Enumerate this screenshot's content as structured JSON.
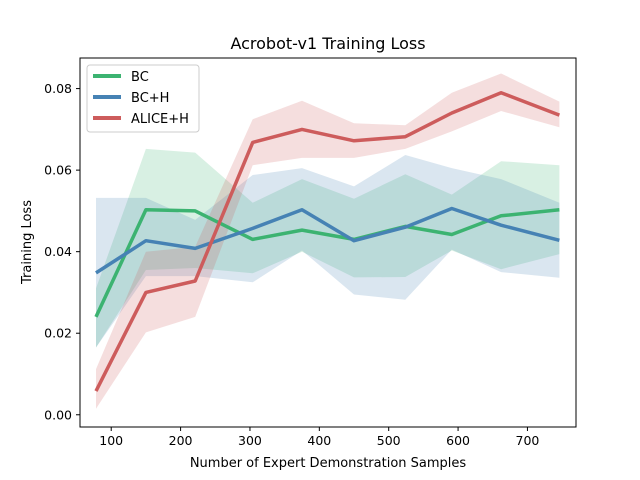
{
  "chart_data": {
    "type": "line",
    "title": "Acrobot-v1 Training Loss",
    "xlabel": "Number of Expert Demonstration Samples",
    "ylabel": "Training Loss",
    "xlim": [
      55,
      770
    ],
    "ylim": [
      -0.003,
      0.0875
    ],
    "xticks": [
      100,
      200,
      300,
      400,
      500,
      600,
      700
    ],
    "yticks": [
      0.0,
      0.02,
      0.04,
      0.06,
      0.08
    ],
    "ytick_labels": [
      "0.00",
      "0.02",
      "0.04",
      "0.06",
      "0.08"
    ],
    "grid": false,
    "legend_position": "top-left",
    "x": [
      78,
      150,
      221,
      304,
      375,
      450,
      524,
      591,
      662,
      746
    ],
    "series": [
      {
        "name": "BC",
        "color": "#3cb371",
        "values": [
          0.024,
          0.0503,
          0.05,
          0.043,
          0.0453,
          0.043,
          0.0462,
          0.0442,
          0.0488,
          0.0503
        ],
        "upper": [
          0.031,
          0.0652,
          0.0643,
          0.052,
          0.0578,
          0.053,
          0.059,
          0.054,
          0.0622,
          0.0612
        ],
        "lower": [
          0.0165,
          0.0355,
          0.036,
          0.0347,
          0.04,
          0.0337,
          0.0338,
          0.0403,
          0.0357,
          0.0394
        ]
      },
      {
        "name": "BC+H",
        "color": "#4682b4",
        "values": [
          0.0348,
          0.0427,
          0.0408,
          0.0457,
          0.0503,
          0.0427,
          0.046,
          0.0506,
          0.0465,
          0.0428
        ],
        "upper": [
          0.0532,
          0.0532,
          0.0478,
          0.0588,
          0.0605,
          0.056,
          0.0637,
          0.0605,
          0.0578,
          0.052
        ],
        "lower": [
          0.0165,
          0.034,
          0.034,
          0.0325,
          0.0403,
          0.0295,
          0.0282,
          0.0405,
          0.035,
          0.0336
        ]
      },
      {
        "name": "ALICE+H",
        "color": "#cd5c5c",
        "values": [
          0.0058,
          0.03,
          0.0328,
          0.0668,
          0.07,
          0.0672,
          0.0682,
          0.074,
          0.079,
          0.0735
        ],
        "upper": [
          0.0112,
          0.04,
          0.0412,
          0.0725,
          0.077,
          0.0715,
          0.071,
          0.079,
          0.0837,
          0.0768
        ],
        "lower": [
          0.0015,
          0.0202,
          0.024,
          0.0612,
          0.063,
          0.063,
          0.0652,
          0.0695,
          0.0745,
          0.0705
        ]
      }
    ]
  }
}
